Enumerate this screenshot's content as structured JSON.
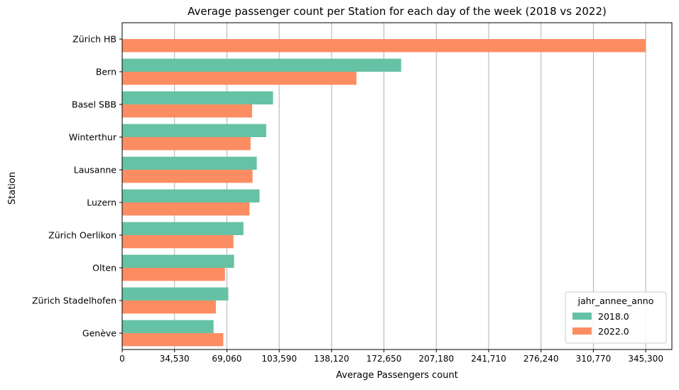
{
  "chart_data": {
    "type": "bar",
    "orientation": "horizontal",
    "title": "Average passenger count per Station for each day of the week (2018 vs 2022)",
    "xlabel": "Average Passengers count",
    "ylabel": "Station",
    "xlim": [
      0,
      362565
    ],
    "xticks": [
      0,
      34530,
      69060,
      103590,
      138120,
      172650,
      207180,
      241710,
      276240,
      310770,
      345300
    ],
    "xtick_labels": [
      "0",
      "34,530",
      "69,060",
      "103,590",
      "138,120",
      "172,650",
      "207,180",
      "241,710",
      "276,240",
      "310,770",
      "345,300"
    ],
    "grid": "vertical",
    "categories": [
      "Zürich HB",
      "Bern",
      "Basel SBB",
      "Winterthur",
      "Lausanne",
      "Luzern",
      "Zürich Oerlikon",
      "Olten",
      "Zürich Stadelhofen",
      "Genève"
    ],
    "series": [
      {
        "name": "2018.0",
        "color": "#66c2a5",
        "values": [
          null,
          184000,
          99500,
          95000,
          88800,
          90600,
          80000,
          73800,
          70000,
          60300
        ]
      },
      {
        "name": "2022.0",
        "color": "#fc8d62",
        "values": [
          345300,
          154500,
          85700,
          84700,
          86000,
          84000,
          73400,
          67800,
          61800,
          66700
        ]
      }
    ],
    "legend": {
      "title": "jahr_annee_anno",
      "position": "lower-right"
    }
  }
}
